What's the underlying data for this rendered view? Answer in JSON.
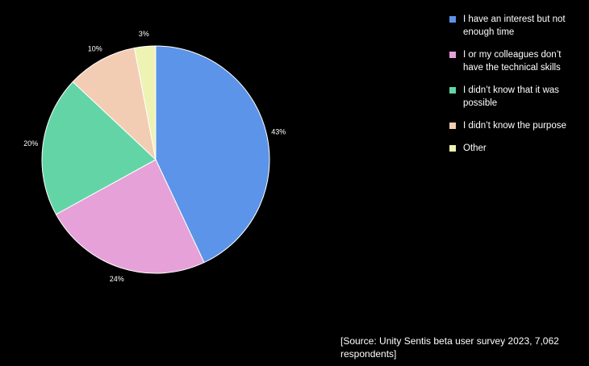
{
  "chart_data": {
    "type": "pie",
    "slices": [
      {
        "label": "I have an interest but not enough time",
        "value": 43,
        "display": "43%",
        "color": "#5b94e8"
      },
      {
        "label": "I or my colleagues don’t have the technical skills",
        "value": 24,
        "display": "24%",
        "color": "#e6a1d8"
      },
      {
        "label": "I didn’t know that it was possible",
        "value": 20,
        "display": "20%",
        "color": "#63d4a6"
      },
      {
        "label": "I didn’t know the purpose",
        "value": 10,
        "display": "10%",
        "color": "#f2cdb4"
      },
      {
        "label": "Other",
        "value": 3,
        "display": "3%",
        "color": "#eef2b3"
      }
    ],
    "legend_position": "top-right",
    "start_angle": "12 o'clock",
    "direction": "clockwise"
  },
  "source_note": "[Source: Unity Sentis beta user survey 2023, 7,062 respondents]"
}
